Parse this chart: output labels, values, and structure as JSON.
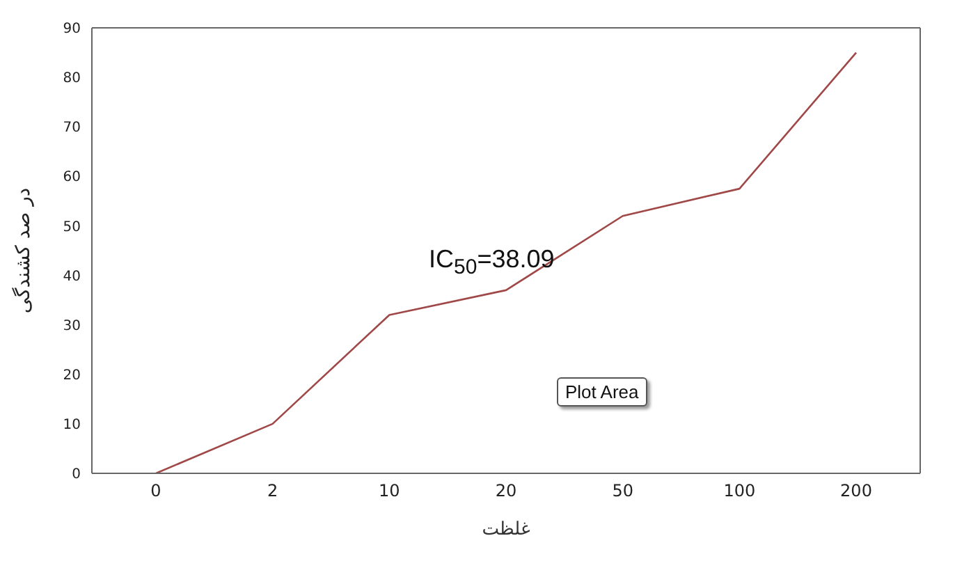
{
  "chart_data": {
    "type": "line",
    "categories": [
      "0",
      "2",
      "10",
      "20",
      "50",
      "100",
      "200"
    ],
    "series": [
      {
        "color": "#a04848",
        "values": [
          0,
          10,
          32,
          37,
          52,
          57.5,
          85
        ]
      }
    ],
    "ylim": [
      0,
      90
    ],
    "yticks": [
      0,
      10,
      20,
      30,
      40,
      50,
      60,
      70,
      80,
      90
    ],
    "xlabel": "غلظت",
    "ylabel": "در صد کشندگی",
    "annotations": [
      "IC$_{50}$=38.09",
      "Plot Area"
    ],
    "grid": false,
    "legend": false,
    "marker": "none",
    "line_style": "solid"
  }
}
